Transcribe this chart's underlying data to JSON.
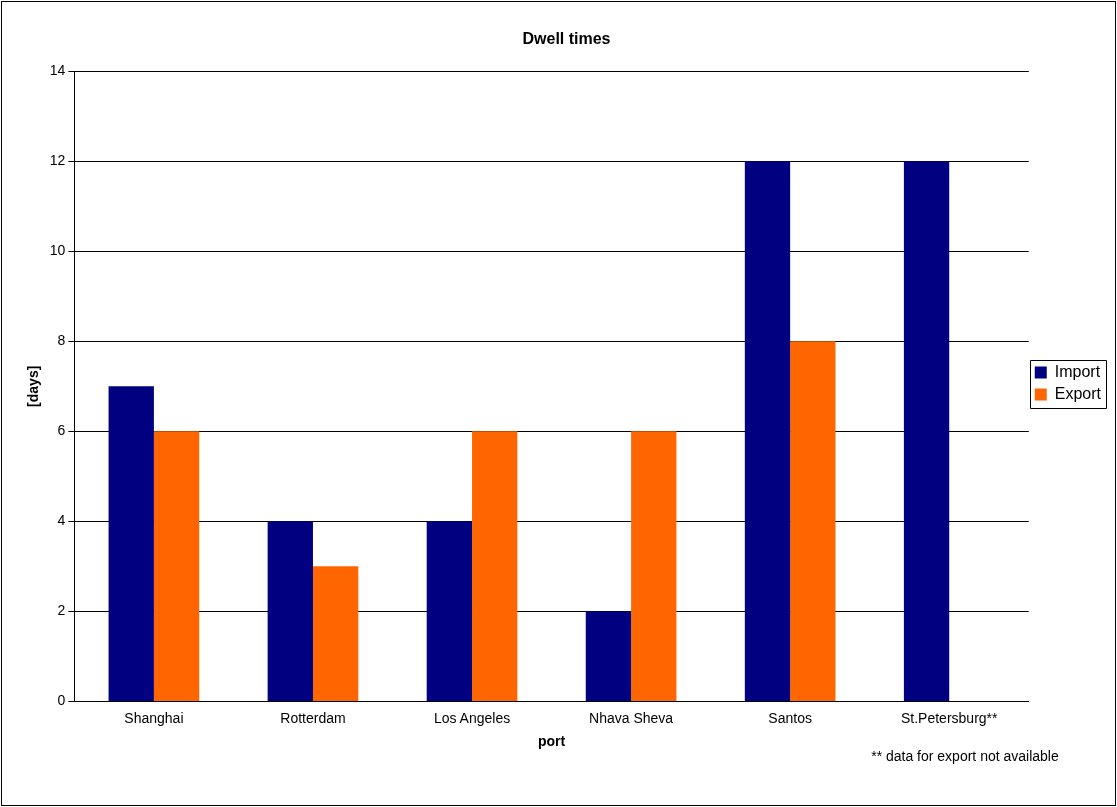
{
  "chart_data": {
    "type": "bar",
    "title": "Dwell times",
    "xlabel": "port",
    "ylabel": "[days]",
    "categories": [
      "Shanghai",
      "Rotterdam",
      "Los Angeles",
      "Nhava Sheva",
      "Santos",
      "St.Petersburg**"
    ],
    "series": [
      {
        "name": "Import",
        "color": "#000080",
        "values": [
          7,
          4,
          4,
          2,
          12,
          12
        ]
      },
      {
        "name": "Export",
        "color": "#ff6600",
        "values": [
          6,
          3,
          6,
          6,
          8,
          null
        ]
      }
    ],
    "ylim": [
      0,
      14
    ],
    "yticks": [
      0,
      2,
      4,
      6,
      8,
      10,
      12,
      14
    ],
    "grid": "y",
    "legend": "right",
    "annotations": [
      "** data for export not available"
    ]
  }
}
